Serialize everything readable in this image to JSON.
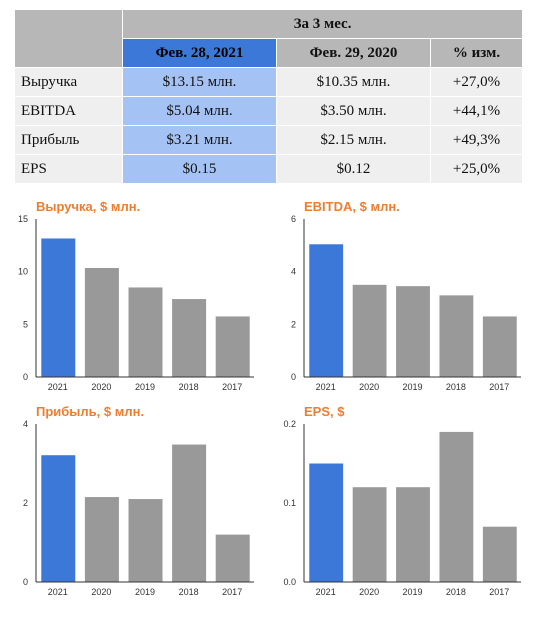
{
  "table": {
    "period_header": "За 3 мес.",
    "col_current": "Фев. 28, 2021",
    "col_previous": "Фев. 29, 2020",
    "col_change": "% изм.",
    "rows": [
      {
        "label": "Выручка",
        "current": "$13.15 млн.",
        "previous": "$10.35 млн.",
        "change": "+27,0%"
      },
      {
        "label": "EBITDA",
        "current": "$5.04 млн.",
        "previous": "$3.50 млн.",
        "change": "+44,1%"
      },
      {
        "label": "Прибыль",
        "current": "$3.21 млн.",
        "previous": "$2.15 млн.",
        "change": "+49,3%"
      },
      {
        "label": "EPS",
        "current": "$0.15",
        "previous": "$0.12",
        "change": "+25,0%"
      }
    ]
  },
  "colors": {
    "highlight": "#3c78d8",
    "other": "#999999",
    "title": "#ed7d31"
  },
  "chart_data": [
    {
      "type": "bar",
      "title": "Выручка, $ млн.",
      "categories": [
        "2021",
        "2020",
        "2019",
        "2018",
        "2017"
      ],
      "values": [
        13.15,
        10.35,
        8.5,
        7.4,
        5.75
      ],
      "ylim": [
        0,
        15
      ],
      "yticks": [
        "0",
        "5",
        "10",
        "15"
      ],
      "ytick_values": [
        0,
        5,
        10,
        15
      ]
    },
    {
      "type": "bar",
      "title": "EBITDA, $ млн.",
      "categories": [
        "2021",
        "2020",
        "2019",
        "2018",
        "2017"
      ],
      "values": [
        5.04,
        3.5,
        3.45,
        3.1,
        2.3
      ],
      "ylim": [
        0,
        6
      ],
      "yticks": [
        "0",
        "2",
        "4",
        "6"
      ],
      "ytick_values": [
        0,
        2,
        4,
        6
      ]
    },
    {
      "type": "bar",
      "title": "Прибыль, $ млн.",
      "categories": [
        "2021",
        "2020",
        "2019",
        "2018",
        "2017"
      ],
      "values": [
        3.21,
        2.15,
        2.1,
        3.48,
        1.2
      ],
      "ylim": [
        0,
        4
      ],
      "yticks": [
        "0",
        "2",
        "4"
      ],
      "ytick_values": [
        0,
        2,
        4
      ]
    },
    {
      "type": "bar",
      "title": "EPS, $",
      "categories": [
        "2021",
        "2020",
        "2019",
        "2018",
        "2017"
      ],
      "values": [
        0.15,
        0.12,
        0.12,
        0.19,
        0.07
      ],
      "ylim": [
        0,
        0.2
      ],
      "yticks": [
        "0.0",
        "0.1",
        "0.2"
      ],
      "ytick_values": [
        0,
        0.1,
        0.2
      ]
    }
  ]
}
